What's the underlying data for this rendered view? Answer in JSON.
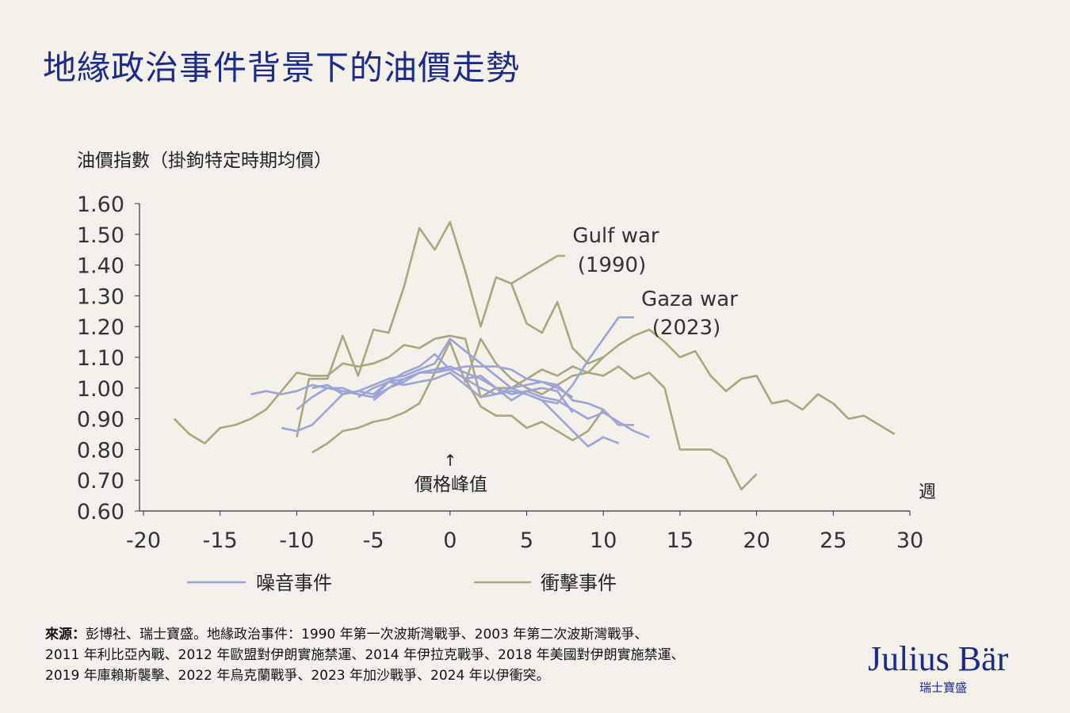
{
  "title": "地緣政治事件背景下的油價走勢",
  "colors": {
    "title": "#1b2a8c",
    "noise": "#9ba3d7",
    "shock": "#aaa67e",
    "background": "#f3f1ea"
  },
  "chart_data": {
    "type": "line",
    "ylabel": "油價指數（掛鉤特定時期均價）",
    "xlabel": "週",
    "xlim": [
      -20,
      30
    ],
    "ylim": [
      0.6,
      1.6
    ],
    "xticks": [
      "-20",
      "-15",
      "-10",
      "-5",
      "0",
      "5",
      "10",
      "15",
      "20",
      "25",
      "30"
    ],
    "yticks": [
      "1.60",
      "1.50",
      "1.40",
      "1.30",
      "1.20",
      "1.10",
      "1.00",
      "0.90",
      "0.80",
      "0.70",
      "0.60"
    ],
    "grid": false,
    "legend": {
      "position": "bottom",
      "items": [
        {
          "label": "噪音事件",
          "group": "noise"
        },
        {
          "label": "衝擊事件",
          "group": "shock"
        }
      ]
    },
    "annotations": {
      "peak_arrow": "↑",
      "peak_label": "價格峰值",
      "gulf_line1": "Gulf war",
      "gulf_line2": "(1990)",
      "gaza_line1": "Gaza war",
      "gaza_line2": "(2023)"
    },
    "series": [
      {
        "group": "shock",
        "x": [
          -10,
          -9.2,
          -8,
          -7,
          -6,
          -5,
          -4,
          -3,
          -2,
          -1,
          0,
          1,
          2,
          3,
          4,
          5,
          6,
          7,
          7.5
        ],
        "y": [
          0.84,
          1.03,
          1.03,
          1.17,
          1.04,
          1.19,
          1.18,
          1.33,
          1.52,
          1.45,
          1.54,
          1.38,
          1.2,
          1.36,
          1.34,
          1.37,
          1.4,
          1.43,
          1.43
        ]
      },
      {
        "group": "shock",
        "x": [
          -18,
          -17,
          -16,
          -15,
          -14,
          -13,
          -12,
          -11,
          -10,
          -9,
          -8,
          -7,
          -6,
          -5,
          -4,
          -3,
          -2,
          -1,
          0,
          1,
          2,
          3,
          4,
          5,
          6,
          7,
          8,
          9,
          10,
          11,
          12,
          13,
          14,
          15,
          16,
          17,
          18,
          19,
          20,
          21,
          22,
          23,
          24,
          25,
          26,
          27,
          28,
          29
        ],
        "y": [
          0.9,
          0.85,
          0.82,
          0.87,
          0.88,
          0.9,
          0.93,
          0.99,
          1.05,
          1.04,
          1.04,
          1.08,
          1.07,
          1.08,
          1.1,
          1.14,
          1.13,
          1.16,
          1.17,
          1.16,
          0.97,
          1.0,
          1.0,
          1.03,
          1.06,
          1.04,
          1.07,
          1.05,
          1.1,
          1.14,
          1.17,
          1.19,
          1.15,
          1.1,
          1.12,
          1.04,
          0.99,
          1.03,
          1.04,
          0.95,
          0.96,
          0.93,
          0.98,
          0.95,
          0.9,
          0.91,
          0.88,
          0.85
        ]
      },
      {
        "group": "shock",
        "x": [
          -9,
          -8,
          -7,
          -6,
          -5,
          -4,
          -3,
          -2,
          -1,
          0,
          1,
          2,
          3,
          4,
          5,
          6,
          7,
          8,
          9,
          10,
          11,
          12,
          13,
          14,
          15,
          16,
          17,
          18,
          19,
          20
        ],
        "y": [
          0.79,
          0.82,
          0.86,
          0.87,
          0.89,
          0.9,
          0.92,
          0.95,
          1.05,
          1.15,
          1.02,
          1.16,
          1.08,
          1.03,
          1.0,
          0.98,
          1.01,
          1.04,
          1.05,
          1.04,
          1.07,
          1.03,
          1.05,
          1.0,
          0.8,
          0.8,
          0.8,
          0.77,
          0.67,
          0.72
        ]
      },
      {
        "group": "shock",
        "x": [
          4,
          5,
          6,
          7,
          8,
          9,
          10
        ],
        "y": [
          1.34,
          1.21,
          1.18,
          1.28,
          1.13,
          1.08,
          1.1
        ]
      },
      {
        "group": "shock",
        "x": [
          1,
          2,
          3,
          4,
          5,
          6,
          7,
          8,
          9,
          10
        ],
        "y": [
          1.03,
          0.94,
          0.91,
          0.91,
          0.87,
          0.89,
          0.86,
          0.83,
          0.86,
          0.93
        ]
      },
      {
        "group": "noise",
        "x": [
          -13,
          -12,
          -11,
          -10,
          -9,
          -8,
          -7,
          -6,
          -5,
          -4,
          -3,
          -2,
          -1,
          0,
          1,
          2,
          3,
          4,
          5,
          6,
          7,
          8,
          9,
          10,
          11,
          12,
          13
        ],
        "y": [
          0.98,
          0.99,
          0.98,
          0.99,
          1.01,
          1.0,
          0.99,
          0.98,
          0.97,
          1.0,
          1.02,
          1.05,
          1.06,
          1.07,
          1.05,
          1.03,
          1.0,
          0.98,
          0.99,
          0.97,
          0.96,
          0.93,
          0.9,
          0.92,
          0.89,
          0.86,
          0.84
        ]
      },
      {
        "group": "noise",
        "x": [
          -11,
          -10,
          -9,
          -8,
          -7,
          -6,
          -5,
          -4,
          -3,
          -2,
          -1,
          0,
          1,
          2,
          3,
          4,
          5,
          6,
          7,
          8,
          9,
          10,
          11
        ],
        "y": [
          0.87,
          0.86,
          0.88,
          0.93,
          0.98,
          0.99,
          1.01,
          1.03,
          1.04,
          1.06,
          1.08,
          1.16,
          1.12,
          1.08,
          1.04,
          1.0,
          0.98,
          0.96,
          0.91,
          0.86,
          0.81,
          0.84,
          0.82
        ]
      },
      {
        "group": "noise",
        "x": [
          -10,
          -9,
          -8,
          -7,
          -6,
          -5,
          -4,
          -3,
          -2,
          -1,
          0,
          1,
          2,
          3,
          4,
          5,
          6,
          7,
          8,
          9,
          10,
          11,
          12
        ],
        "y": [
          0.93,
          0.97,
          1.0,
          1.0,
          0.98,
          0.97,
          1.02,
          1.05,
          1.07,
          1.11,
          1.06,
          1.07,
          1.07,
          1.07,
          1.06,
          1.03,
          1.02,
          1.01,
          0.96,
          0.95,
          0.93,
          0.88,
          0.88
        ]
      },
      {
        "group": "noise",
        "x": [
          -6,
          -5,
          -4,
          -3,
          -2,
          -1,
          0,
          1,
          2,
          3,
          4,
          5,
          6,
          7,
          8,
          9,
          10,
          11,
          12
        ],
        "y": [
          0.97,
          1.0,
          1.02,
          1.03,
          1.05,
          1.06,
          1.06,
          1.03,
          1.0,
          0.98,
          0.99,
          0.98,
          0.96,
          0.95,
          1.01,
          1.09,
          1.16,
          1.23,
          1.23
        ]
      },
      {
        "group": "noise",
        "x": [
          -9,
          -8,
          -7,
          -6,
          -5,
          -4,
          -3,
          -2,
          -1,
          0,
          1,
          2,
          3,
          4,
          5,
          6,
          7,
          8
        ],
        "y": [
          1.0,
          1.01,
          0.98,
          0.99,
          0.98,
          1.02,
          1.01,
          1.02,
          1.03,
          1.05,
          1.01,
          0.97,
          0.98,
          1.0,
          1.01,
          1.02,
          1.0,
          0.97
        ]
      },
      {
        "group": "noise",
        "x": [
          -5,
          -4,
          -3,
          -2,
          -1,
          0,
          1,
          2,
          3,
          4,
          5,
          6,
          7,
          8
        ],
        "y": [
          0.96,
          1.0,
          1.03,
          1.05,
          1.05,
          1.06,
          1.03,
          1.04,
          1.0,
          0.96,
          0.99,
          1.0,
          0.99,
          0.92
        ]
      }
    ]
  },
  "footer": {
    "source_label": "來源：",
    "source_text": "彭博社、瑞士寶盛。地緣政治事件：1990 年第一次波斯灣戰爭、2003 年第二次波斯灣戰爭、",
    "line2": "2011 年利比亞內戰、2012 年歐盟對伊朗實施禁運、2014 年伊拉克戰爭、2018 年美國對伊朗實施禁運、",
    "line3": "2019 年庫賴斯襲擊、2022 年烏克蘭戰爭、2023 年加沙戰爭、2024 年以伊衝突。"
  },
  "logo": {
    "name": "Julius Bär",
    "sub": "瑞士寶盛"
  }
}
